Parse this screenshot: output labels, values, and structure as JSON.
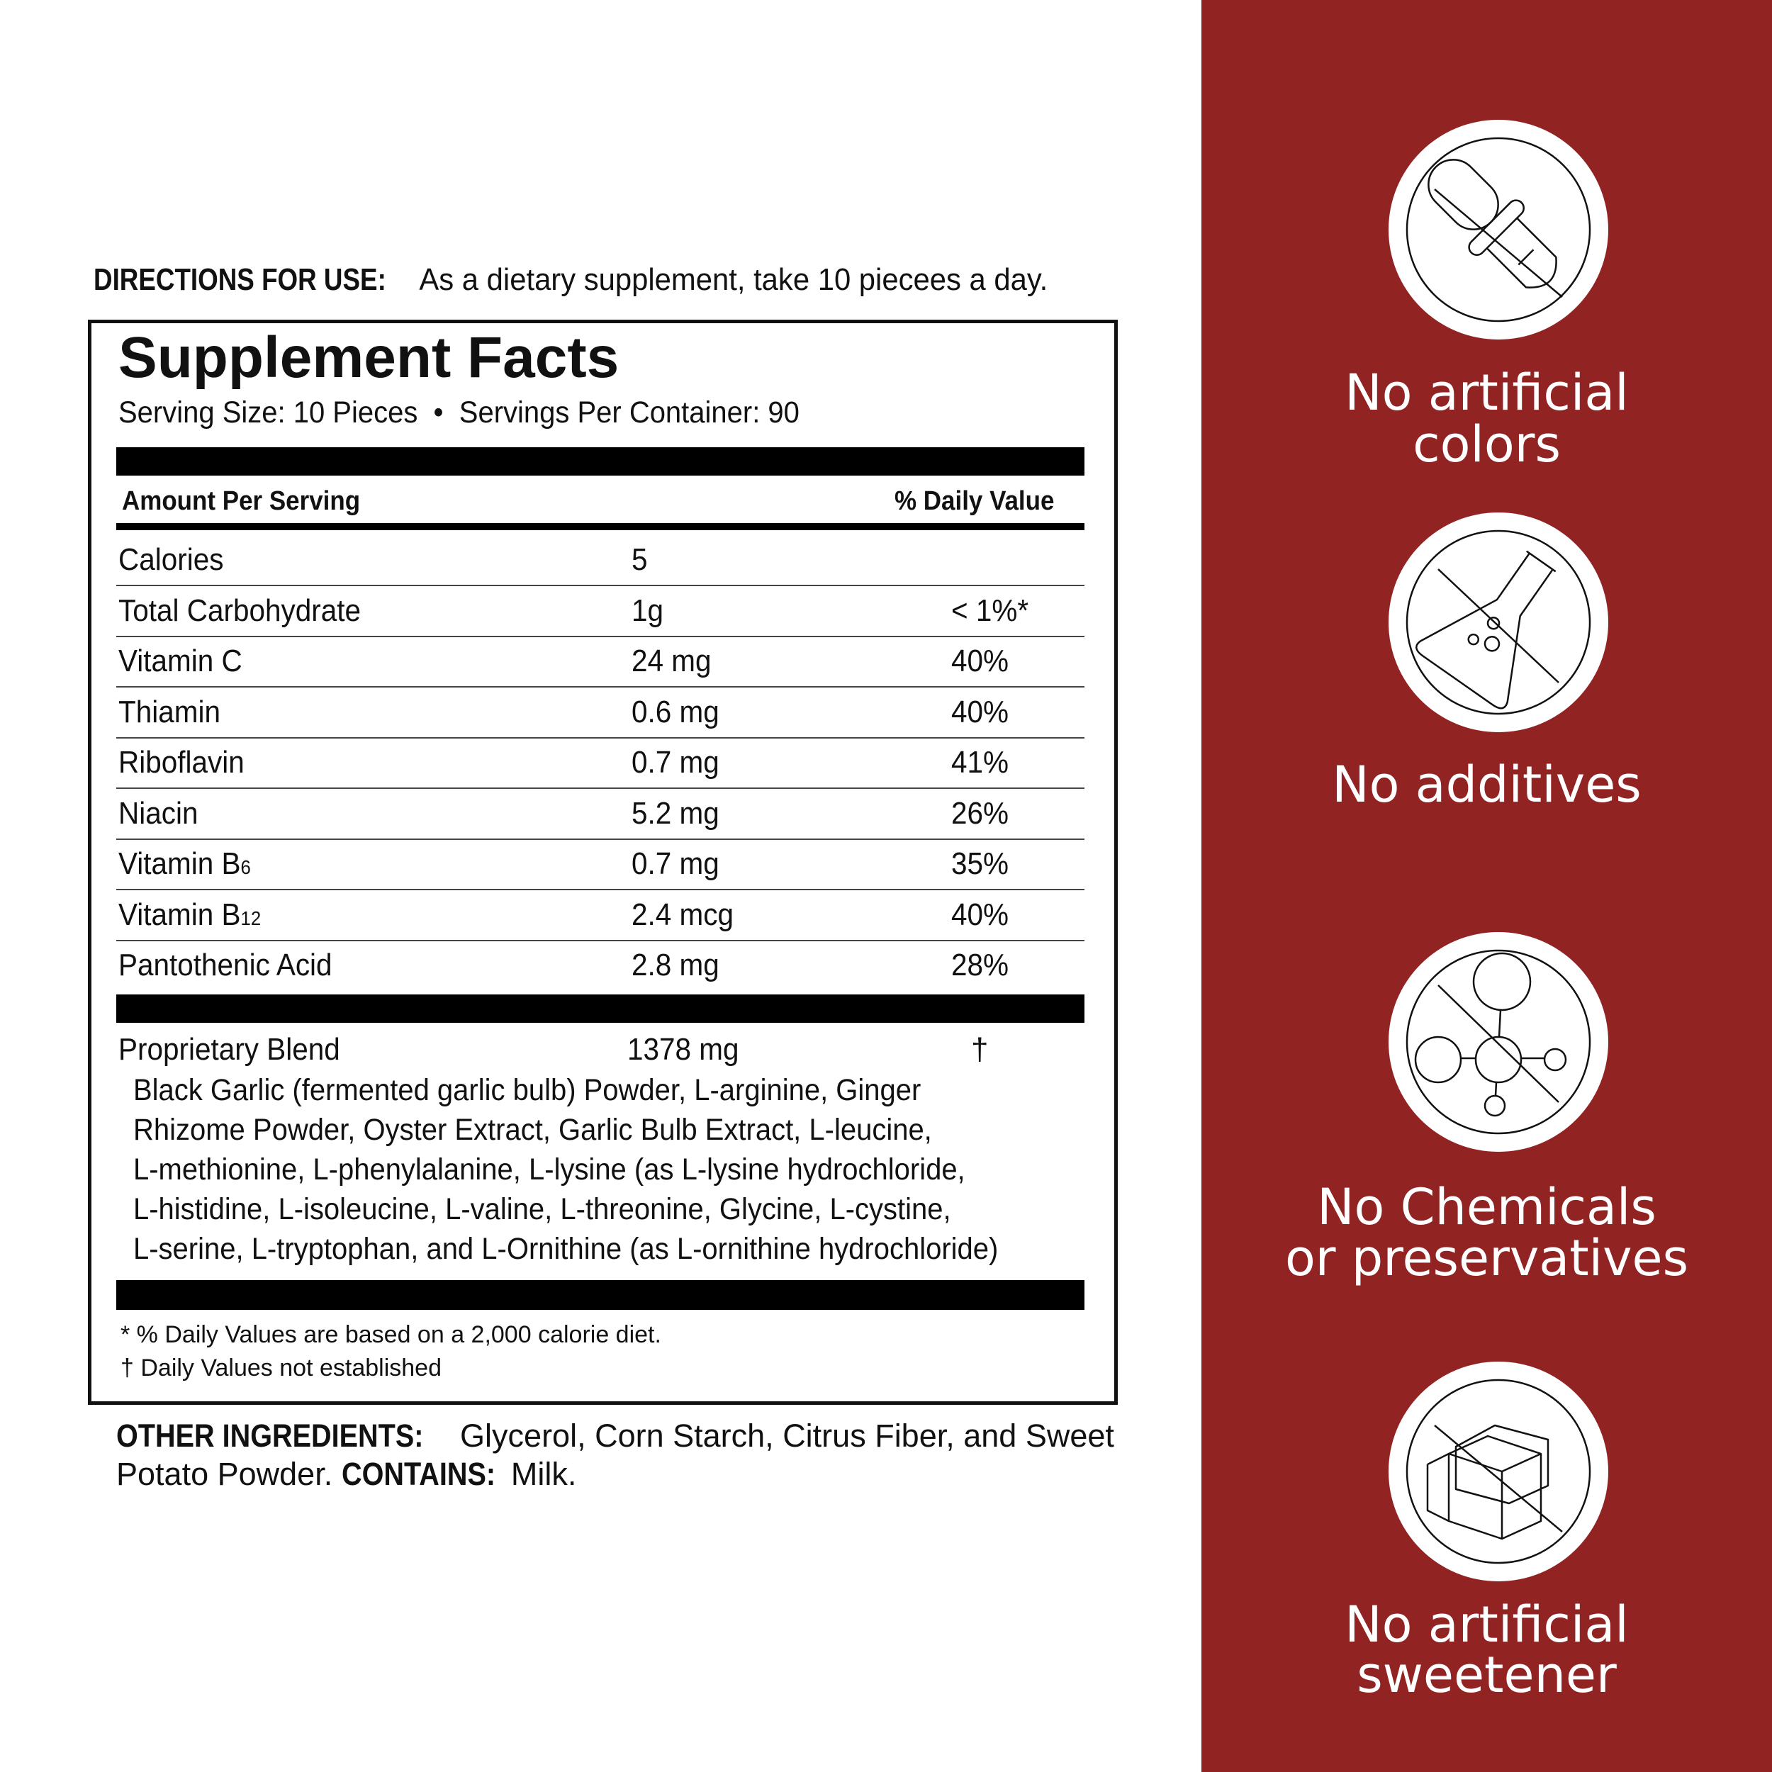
{
  "directions": {
    "label": "DIRECTIONS FOR USE:",
    "text": "As a dietary supplement, take 10 piecees a day."
  },
  "facts": {
    "title": "Supplement Facts",
    "serving": "Serving Size: 10 Pieces  •  Servings Per Container: 90",
    "amount_header": "Amount Per Serving",
    "dv_header": "% Daily Value",
    "rows": [
      {
        "name": "Calories",
        "sub": "",
        "amount": "5",
        "dv": ""
      },
      {
        "name": "Total Carbohydrate",
        "sub": "",
        "amount": "1g",
        "dv": "< 1%*"
      },
      {
        "name": "Vitamin C",
        "sub": "",
        "amount": "24 mg",
        "dv": "40%"
      },
      {
        "name": "Thiamin",
        "sub": "",
        "amount": "0.6 mg",
        "dv": "40%"
      },
      {
        "name": "Riboflavin",
        "sub": "",
        "amount": "0.7 mg",
        "dv": "41%"
      },
      {
        "name": "Niacin",
        "sub": "",
        "amount": "5.2 mg",
        "dv": "26%"
      },
      {
        "name": "Vitamin B",
        "sub": "6",
        "amount": "0.7 mg",
        "dv": "35%"
      },
      {
        "name": "Vitamin B",
        "sub": "12",
        "amount": "2.4 mcg",
        "dv": "40%"
      },
      {
        "name": "Pantothenic Acid",
        "sub": "",
        "amount": "2.8 mg",
        "dv": "28%"
      }
    ],
    "blend": {
      "name": "Proprietary Blend",
      "amount": "1378 mg",
      "dv": "†",
      "ingredients": [
        "Black Garlic (fermented garlic bulb) Powder, L-arginine, Ginger",
        "Rhizome Powder, Oyster Extract, Garlic Bulb Extract, L-leucine,",
        "L-methionine, L-phenylalanine, L-lysine (as L-lysine hydrochloride,",
        "L-histidine, L-isoleucine, L-valine, L-threonine, Glycine, L-cystine,",
        "L-serine, L-tryptophan, and L-Ornithine (as L-ornithine hydrochloride)"
      ]
    },
    "footnotes": [
      "* % Daily Values are based on a 2,000 calorie diet.",
      "† Daily Values not established"
    ]
  },
  "other": {
    "label": "OTHER INGREDIENTS:",
    "text": "Glycerol, Corn Starch, Citrus Fiber, and Sweet",
    "text2": "Potato Powder.",
    "contains_label": "CONTAINS:",
    "contains": "Milk."
  },
  "badges": [
    {
      "icon": "dropper-icon",
      "lines": [
        "No artificial",
        "colors"
      ]
    },
    {
      "icon": "flask-icon",
      "lines": [
        "No additives"
      ]
    },
    {
      "icon": "molecule-icon",
      "lines": [
        "No Chemicals",
        "or preservatives"
      ]
    },
    {
      "icon": "sugar-cube-icon",
      "lines": [
        "No artificial",
        "sweetener"
      ]
    }
  ],
  "colors": {
    "panel": "#922323"
  }
}
